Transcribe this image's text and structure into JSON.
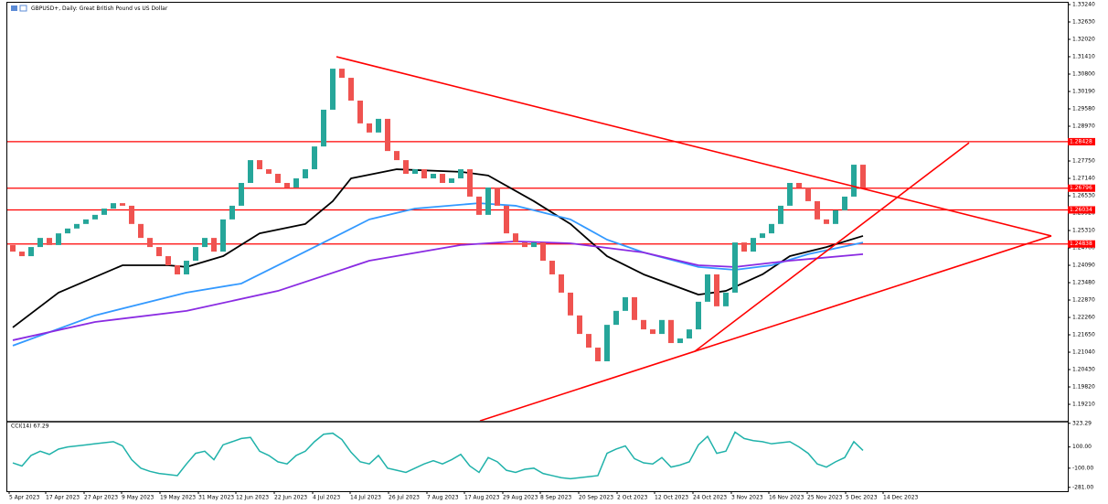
{
  "chart_data": {
    "type": "candlestick",
    "title": "GBPUSD+, Daily:  Great British Pound vs US Dollar",
    "up_color": "#26a69a",
    "down_color": "#ef5350",
    "open": [
      1.248,
      1.2457,
      1.2441,
      1.2473,
      1.2505,
      1.248,
      1.2521,
      1.2538,
      1.2554,
      1.257,
      1.2586,
      1.2608,
      1.2627,
      1.2618,
      1.2554,
      1.2505,
      1.2473,
      1.2441,
      1.2409,
      1.2377,
      1.2425,
      1.2473,
      1.2505,
      1.2457,
      1.257,
      1.2618,
      1.2698,
      1.2778,
      1.2746,
      1.273,
      1.2698,
      1.2682,
      1.2714,
      1.2746,
      1.2826,
      1.2955,
      1.3099,
      1.3067,
      1.2987,
      1.2907,
      1.2875,
      1.2923,
      1.281,
      1.2778,
      1.273,
      1.2746,
      1.2714,
      1.273,
      1.2698,
      1.2714,
      1.2746,
      1.265,
      1.2586,
      1.2682,
      1.2618,
      1.2521,
      1.2489,
      1.2473,
      1.2489,
      1.2425,
      1.2377,
      1.2313,
      1.2233,
      1.2168,
      1.212,
      1.2072,
      1.22,
      1.2249,
      1.2297,
      1.2217,
      1.2184,
      1.2168,
      1.2217,
      1.2136,
      1.2152,
      1.2184,
      1.2281,
      1.2377,
      1.2265,
      1.2313,
      1.2489,
      1.2457,
      1.2505,
      1.2521,
      1.2554,
      1.2618,
      1.2698,
      1.2682,
      1.2634,
      1.257,
      1.2554,
      1.2602,
      1.265,
      1.2762
    ],
    "close": [
      1.2457,
      1.2441,
      1.2473,
      1.2505,
      1.248,
      1.2521,
      1.2538,
      1.2554,
      1.257,
      1.2586,
      1.2608,
      1.2627,
      1.2618,
      1.2554,
      1.2505,
      1.2473,
      1.2441,
      1.2409,
      1.2377,
      1.2425,
      1.2473,
      1.2505,
      1.2457,
      1.257,
      1.2618,
      1.2698,
      1.2778,
      1.2746,
      1.273,
      1.2698,
      1.2682,
      1.2714,
      1.2746,
      1.2826,
      1.2955,
      1.3099,
      1.3067,
      1.2987,
      1.2907,
      1.2875,
      1.2923,
      1.281,
      1.2778,
      1.273,
      1.2746,
      1.2714,
      1.273,
      1.2698,
      1.2714,
      1.2746,
      1.265,
      1.2586,
      1.2682,
      1.2618,
      1.2521,
      1.2489,
      1.2473,
      1.2489,
      1.2425,
      1.2377,
      1.2313,
      1.2233,
      1.2168,
      1.212,
      1.2072,
      1.22,
      1.2249,
      1.2297,
      1.2217,
      1.2184,
      1.2168,
      1.2217,
      1.2136,
      1.2152,
      1.2184,
      1.2281,
      1.2377,
      1.2265,
      1.2313,
      1.2489,
      1.2457,
      1.2505,
      1.2521,
      1.2554,
      1.2618,
      1.2698,
      1.2682,
      1.2634,
      1.257,
      1.2554,
      1.2602,
      1.265,
      1.2762,
      1.2682
    ],
    "moving_averages": [
      {
        "color": "#000000",
        "x": [
          0,
          5,
          12,
          17,
          19,
          23,
          27,
          32,
          35,
          37,
          42,
          49,
          52,
          57,
          61,
          65,
          69,
          75,
          78,
          82,
          85,
          89,
          93
        ],
        "values": [
          1.2191,
          1.2313,
          1.2409,
          1.2409,
          1.2403,
          1.2441,
          1.2521,
          1.2554,
          1.2634,
          1.2714,
          1.2746,
          1.2737,
          1.2724,
          1.2634,
          1.2554,
          1.2441,
          1.2377,
          1.2306,
          1.2319,
          1.2377,
          1.2441,
          1.2473,
          1.2512
        ]
      },
      {
        "color": "#3399ff",
        "x": [
          0,
          9,
          19,
          25,
          31,
          35,
          39,
          44,
          51,
          55,
          61,
          65,
          69,
          75,
          79,
          83,
          87,
          93
        ],
        "values": [
          1.2127,
          1.2233,
          1.2313,
          1.2345,
          1.2441,
          1.2505,
          1.257,
          1.2608,
          1.2627,
          1.2618,
          1.257,
          1.2499,
          1.2454,
          1.2403,
          1.2393,
          1.2409,
          1.2448,
          1.2489
        ]
      },
      {
        "color": "#8a2be2",
        "x": [
          0,
          9,
          19,
          29,
          39,
          49,
          55,
          61,
          69,
          75,
          79,
          85,
          93
        ],
        "values": [
          1.2146,
          1.221,
          1.2249,
          1.2319,
          1.2425,
          1.248,
          1.2493,
          1.2486,
          1.2454,
          1.2409,
          1.2403,
          1.2425,
          1.2448
        ]
      }
    ],
    "trendlines": [
      {
        "color": "#ff0000",
        "x": [
          35.4,
          113.6
        ],
        "values": [
          1.3141,
          1.2512
        ]
      },
      {
        "color": "#ff0000",
        "x": [
          51.1,
          113.6
        ],
        "values": [
          1.1863,
          1.2512
        ]
      },
      {
        "color": "#ff0000",
        "x": [
          74.6,
          104.6
        ],
        "values": [
          1.2107,
          1.2839
        ]
      }
    ],
    "levels": [
      {
        "value": 1.28428,
        "color": "#ff0000"
      },
      {
        "value": 1.26796,
        "color": "#ff0000"
      },
      {
        "value": 1.26034,
        "color": "#ff0000"
      },
      {
        "value": 1.24838,
        "color": "#ff0000"
      }
    ],
    "ylim": [
      1.18633,
      1.3324
    ],
    "yticks": [
      {
        "value": 1.3324,
        "label": "1.33240"
      },
      {
        "value": 1.3263,
        "label": "1.32630"
      },
      {
        "value": 1.3202,
        "label": "1.32020"
      },
      {
        "value": 1.3141,
        "label": "1.31410"
      },
      {
        "value": 1.308,
        "label": "1.30800"
      },
      {
        "value": 1.3019,
        "label": "1.30190"
      },
      {
        "value": 1.2958,
        "label": "1.29580"
      },
      {
        "value": 1.2897,
        "label": "1.28970"
      },
      {
        "value": 1.2836,
        "label": "1.28360"
      },
      {
        "value": 1.2775,
        "label": "1.27750"
      },
      {
        "value": 1.2714,
        "label": "1.27140"
      },
      {
        "value": 1.2653,
        "label": "1.26530"
      },
      {
        "value": 1.2592,
        "label": "1.25920"
      },
      {
        "value": 1.2531,
        "label": "1.25310"
      },
      {
        "value": 1.247,
        "label": "1.24700"
      },
      {
        "value": 1.2409,
        "label": "1.24090"
      },
      {
        "value": 1.2348,
        "label": "1.23480"
      },
      {
        "value": 1.2287,
        "label": "1.22870"
      },
      {
        "value": 1.2226,
        "label": "1.22260"
      },
      {
        "value": 1.2165,
        "label": "1.21650"
      },
      {
        "value": 1.2104,
        "label": "1.21040"
      },
      {
        "value": 1.2043,
        "label": "1.20430"
      },
      {
        "value": 1.1982,
        "label": "1.19820"
      },
      {
        "value": 1.1921,
        "label": "1.19210"
      }
    ],
    "xticks": [
      {
        "value": -0.4,
        "label": "5 Apr 2023"
      },
      {
        "value": 3.6,
        "label": "17 Apr 2023"
      },
      {
        "value": 7.8,
        "label": "27 Apr 2023"
      },
      {
        "value": 11.9,
        "label": "9 May 2023"
      },
      {
        "value": 16.1,
        "label": "19 May 2023"
      },
      {
        "value": 20.3,
        "label": "31 May 2023"
      },
      {
        "value": 24.4,
        "label": "12 Jun 2023"
      },
      {
        "value": 28.6,
        "label": "22 Jun 2023"
      },
      {
        "value": 32.8,
        "label": "4 Jul 2023"
      },
      {
        "value": 36.9,
        "label": "14 Jul 2023"
      },
      {
        "value": 41.1,
        "label": "26 Jul 2023"
      },
      {
        "value": 45.3,
        "label": "7 Aug 2023"
      },
      {
        "value": 49.4,
        "label": "17 Aug 2023"
      },
      {
        "value": 53.6,
        "label": "29 Aug 2023"
      },
      {
        "value": 57.7,
        "label": "8 Sep 2023"
      },
      {
        "value": 61.9,
        "label": "20 Sep 2023"
      },
      {
        "value": 66.1,
        "label": "2 Oct 2023"
      },
      {
        "value": 70.2,
        "label": "12 Oct 2023"
      },
      {
        "value": 74.4,
        "label": "24 Oct 2023"
      },
      {
        "value": 78.6,
        "label": "3 Nov 2023"
      },
      {
        "value": 82.7,
        "label": "16 Nov 2023"
      },
      {
        "value": 86.9,
        "label": "25 Nov 2023"
      },
      {
        "value": 91.1,
        "label": "5 Dec 2023"
      },
      {
        "value": 95.2,
        "label": "14 Dec 2023"
      }
    ],
    "indicator": {
      "title": "CCI(14) 67.29",
      "color": "#20b2aa",
      "values": [
        -50,
        -80,
        20,
        60,
        30,
        80,
        100,
        110,
        120,
        130,
        140,
        150,
        110,
        -20,
        -100,
        -130,
        -150,
        -160,
        -170,
        -60,
        40,
        60,
        -20,
        120,
        150,
        180,
        190,
        60,
        20,
        -40,
        -60,
        20,
        60,
        150,
        220,
        230,
        170,
        50,
        -40,
        -60,
        20,
        -100,
        -120,
        -140,
        -100,
        -60,
        -30,
        -60,
        -20,
        30,
        -80,
        -140,
        0,
        -40,
        -120,
        -140,
        -110,
        -100,
        -150,
        -170,
        -190,
        -200,
        -190,
        -180,
        -170,
        40,
        80,
        110,
        -10,
        -50,
        -60,
        0,
        -90,
        -70,
        -40,
        120,
        200,
        40,
        60,
        240,
        180,
        160,
        150,
        130,
        140,
        150,
        100,
        40,
        -60,
        -90,
        -40,
        0,
        150,
        67.29
      ],
      "ylim": [
        -300,
        330
      ],
      "yticks": [
        {
          "value": 323.29,
          "label": "323.29"
        },
        {
          "value": 100,
          "label": "100.00"
        },
        {
          "value": -100,
          "label": "-100.00"
        },
        {
          "value": -281,
          "label": "-281.00"
        }
      ]
    }
  }
}
